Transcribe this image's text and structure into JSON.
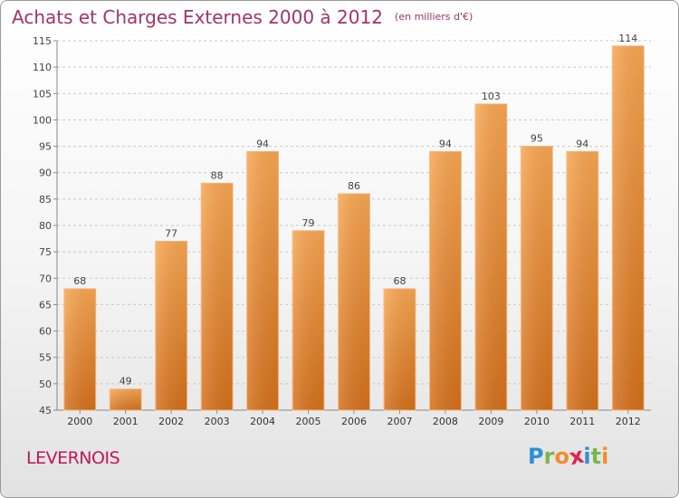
{
  "chart_data": {
    "type": "bar",
    "title": "Achats et Charges Externes 2000 à 2012",
    "subtitle": "(en milliers d'€)",
    "categories": [
      "2000",
      "2001",
      "2002",
      "2003",
      "2004",
      "2005",
      "2006",
      "2007",
      "2008",
      "2009",
      "2010",
      "2011",
      "2012"
    ],
    "values": [
      68,
      49,
      77,
      88,
      94,
      79,
      86,
      68,
      94,
      103,
      95,
      94,
      114
    ],
    "ylim": [
      45,
      115
    ],
    "yticks": [
      45,
      50,
      55,
      60,
      65,
      70,
      75,
      80,
      85,
      90,
      95,
      100,
      105,
      110,
      115
    ],
    "grid": true,
    "legend": "none",
    "bar_color": "#f28c2e"
  },
  "footer": {
    "location": "LEVERNOIS",
    "logo_letters": [
      "P",
      "r",
      "o",
      "x",
      "i",
      "t",
      "i"
    ],
    "logo_colors": [
      "#2f8fd6",
      "#7ab648",
      "#f28c2e",
      "#e0234a",
      "#2f8fd6",
      "#7ab648",
      "#f28c2e"
    ]
  }
}
